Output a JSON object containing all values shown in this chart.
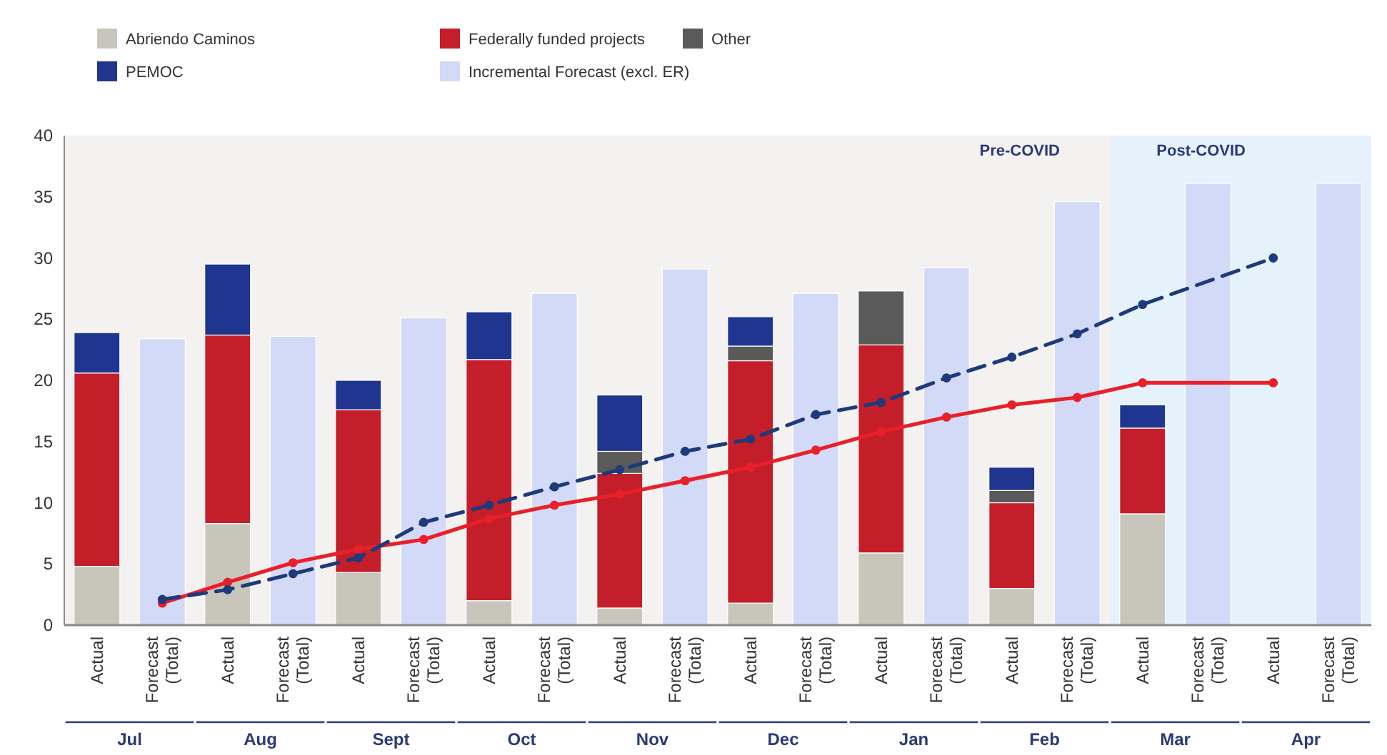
{
  "chart_data": {
    "type": "bar",
    "stacked": true,
    "categories": [
      "Actual",
      "Forecast\n(Total)",
      "Actual",
      "Forecast\n(Total)",
      "Actual",
      "Forecast\n(Total)",
      "Actual",
      "Forecast\n(Total)",
      "Actual",
      "Forecast\n(Total)",
      "Actual",
      "Forecast\n(Total)",
      "Actual",
      "Forecast\n(Total)",
      "Actual",
      "Forecast\n(Total)",
      "Actual",
      "Forecast\n(Total)",
      "Actual",
      "Forecast\n(Total)"
    ],
    "series": [
      {
        "name": "Abriendo Caminos",
        "color": "#c8c6bb",
        "values": [
          4.8,
          null,
          8.3,
          null,
          4.3,
          null,
          2.0,
          null,
          1.4,
          null,
          1.8,
          null,
          5.9,
          null,
          3.0,
          null,
          9.1,
          null,
          null,
          null
        ]
      },
      {
        "name": "Federally funded projects",
        "color": "#c41e2a",
        "values": [
          15.8,
          null,
          15.4,
          null,
          13.3,
          null,
          19.7,
          null,
          11.0,
          null,
          19.8,
          null,
          17.0,
          null,
          7.0,
          null,
          7.0,
          null,
          null,
          null
        ]
      },
      {
        "name": "Other",
        "color": "#5a5a5a",
        "values": [
          null,
          null,
          null,
          null,
          null,
          null,
          null,
          null,
          1.8,
          null,
          1.2,
          null,
          4.4,
          null,
          1.0,
          null,
          null,
          null,
          null,
          null
        ]
      },
      {
        "name": "PEMOC",
        "color": "#1f3590",
        "values": [
          3.3,
          null,
          5.8,
          null,
          2.4,
          null,
          3.9,
          null,
          4.6,
          null,
          2.4,
          null,
          null,
          null,
          1.9,
          null,
          1.9,
          null,
          null,
          null
        ]
      },
      {
        "name": "Incremental Forecast (excl. ER)",
        "color": "#d3daf7",
        "values": [
          null,
          23.4,
          null,
          23.6,
          null,
          25.1,
          null,
          27.1,
          null,
          29.1,
          null,
          27.1,
          null,
          29.2,
          null,
          34.6,
          null,
          36.1,
          null,
          36.1
        ]
      },
      {
        "type": "line",
        "color": "#e8202a",
        "line_style": "solid",
        "marker": "circle",
        "values": [
          null,
          1.8,
          3.5,
          5.1,
          6.2,
          7.0,
          8.7,
          9.8,
          10.7,
          11.8,
          12.9,
          14.3,
          15.8,
          17.0,
          18.0,
          18.6,
          19.8,
          null,
          19.8,
          null
        ]
      },
      {
        "type": "line",
        "color": "#1f3a7a",
        "line_style": "dashed",
        "marker": "circle",
        "values": [
          null,
          2.1,
          2.9,
          4.2,
          5.5,
          8.4,
          9.8,
          11.3,
          12.7,
          14.2,
          15.2,
          17.2,
          18.2,
          20.2,
          21.9,
          23.8,
          26.2,
          null,
          30.0,
          null
        ]
      }
    ],
    "ylim": [
      0,
      40
    ],
    "yticks": [
      0,
      5,
      10,
      15,
      20,
      25,
      30,
      35,
      40
    ],
    "grid": false,
    "legend": "top left",
    "annotations": [
      "Jul",
      "Aug",
      "Sept",
      "Oct",
      "Nov",
      "Dec",
      "Jan",
      "Feb",
      "Mar",
      "Apr",
      "Pre-COVID",
      "Post-COVID"
    ]
  }
}
